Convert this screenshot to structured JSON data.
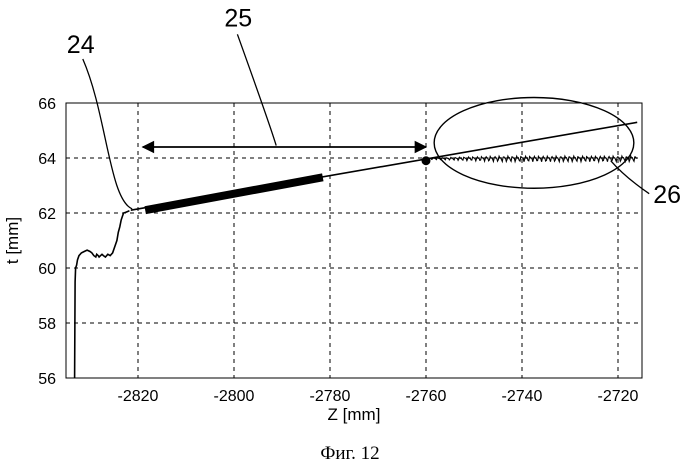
{
  "caption": "Фиг. 12",
  "chart_data": {
    "type": "line",
    "title": "",
    "xlabel": "Z [mm]",
    "ylabel": "t [mm]",
    "xlim": [
      -2835,
      -2715
    ],
    "ylim": [
      56,
      66
    ],
    "xticks": [
      -2820,
      -2800,
      -2780,
      -2760,
      -2740,
      -2720
    ],
    "yticks": [
      56,
      58,
      60,
      62,
      64,
      66
    ],
    "grid": true,
    "series": [
      {
        "role": "measured-profile",
        "x": [
          -2833.2,
          -2833.1,
          -2833.0,
          -2832.8,
          -2832.6,
          -2832.3,
          -2831.8,
          -2831.2,
          -2830.6,
          -2830.0,
          -2829.6,
          -2829.2,
          -2828.8,
          -2828.6,
          -2828.3,
          -2828.1,
          -2827.8,
          -2827.5,
          -2827.2,
          -2826.8,
          -2826.3,
          -2825.8,
          -2825.3,
          -2824.8,
          -2824.4,
          -2824.1,
          -2823.8,
          -2823.5,
          -2823.2,
          -2823.0,
          -2822.6,
          -2822.2,
          -2821.8
        ],
        "y": [
          56.0,
          59.5,
          60.0,
          60.1,
          60.3,
          60.45,
          60.55,
          60.6,
          60.65,
          60.6,
          60.55,
          60.45,
          60.4,
          60.5,
          60.45,
          60.4,
          60.45,
          60.5,
          60.45,
          60.4,
          60.5,
          60.45,
          60.55,
          60.8,
          61.0,
          61.3,
          61.5,
          61.75,
          61.9,
          62.0,
          62.02,
          62.05,
          62.08
        ]
      },
      {
        "role": "fit-line",
        "x": [
          -2821.5,
          -2716
        ],
        "y": [
          62.1,
          65.3
        ]
      },
      {
        "role": "fitted-segment-bold",
        "x": [
          -2818.5,
          -2781.5
        ],
        "y": [
          62.1,
          63.3
        ]
      },
      {
        "role": "oscillating-signal",
        "x": [
          -2759.5,
          -2716
        ],
        "y": [
          63.98,
          63.98
        ],
        "amplitude": 0.12
      },
      {
        "role": "marker-point",
        "x": [
          -2760
        ],
        "y": [
          63.9
        ]
      },
      {
        "role": "dimension-arrow",
        "x": [
          -2819,
          -2760
        ],
        "y": [
          64.4,
          64.4
        ]
      },
      {
        "role": "highlight-ellipse",
        "center": [
          -2737.5,
          64.55
        ],
        "radius": [
          20.8,
          1.65
        ]
      }
    ],
    "annotations": [
      {
        "label": "24",
        "anchor": [
          -2821.2,
          62.15
        ],
        "leader": [
          [
            -2831.5,
            67.6
          ],
          [
            -2826.5,
            65.6
          ],
          [
            -2826.0,
            62.5
          ],
          [
            -2821.2,
            62.15
          ]
        ]
      },
      {
        "label": "25",
        "anchor": [
          -2791.2,
          64.45
        ],
        "leader": [
          [
            -2799.3,
            68.5
          ],
          [
            -2792.5,
            65.2
          ],
          [
            -2791.2,
            64.45
          ]
        ]
      },
      {
        "label": "26",
        "anchor": [
          -2721.5,
          63.9
        ],
        "leader": [
          [
            -2721.5,
            63.9
          ],
          [
            -2718.5,
            63.3
          ],
          [
            -2713.5,
            62.7
          ]
        ]
      }
    ]
  }
}
